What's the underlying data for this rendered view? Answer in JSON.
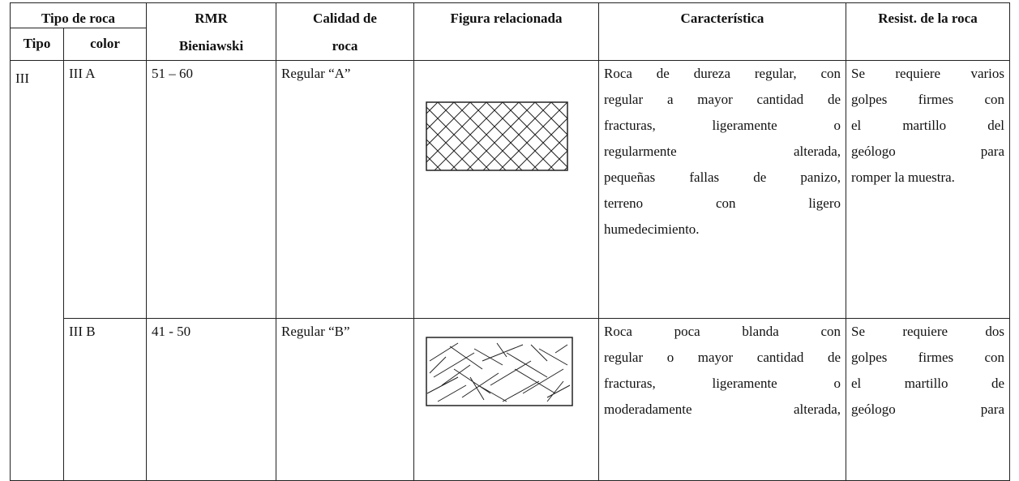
{
  "table": {
    "header": {
      "rock_type": "Tipo de roca",
      "rmr": [
        "RMR",
        "Bieniawski"
      ],
      "quality": [
        "Calidad de",
        "roca"
      ],
      "figure": "Figura relacionada",
      "characteristic": "Característica",
      "resistance": "Resist. de la roca",
      "type": "Tipo",
      "color": "color"
    },
    "rows": [
      {
        "type": "III",
        "color": "III A",
        "rmr": "51 – 60",
        "quality": "Regular “A”",
        "characteristic": [
          "Roca de dureza regular, con",
          "regular a mayor cantidad de",
          "fracturas, ligeramente o",
          "regularmente alterada,",
          "pequeñas fallas de panizo,",
          "terreno con ligero",
          "humedecimiento."
        ],
        "resistance": [
          "Se requiere varios",
          "golpes firmes con",
          "el martillo del",
          "geólogo para",
          "romper la muestra."
        ]
      },
      {
        "color": "III B",
        "rmr": "41 - 50",
        "quality": "Regular “B”",
        "characteristic": [
          "Roca poca blanda con",
          "regular o mayor cantidad de",
          "fracturas, ligeramente o",
          "moderadamente alterada,"
        ],
        "resistance": [
          "Se requiere dos",
          "golpes firmes con",
          "el martillo de",
          "geólogo para"
        ]
      }
    ]
  }
}
